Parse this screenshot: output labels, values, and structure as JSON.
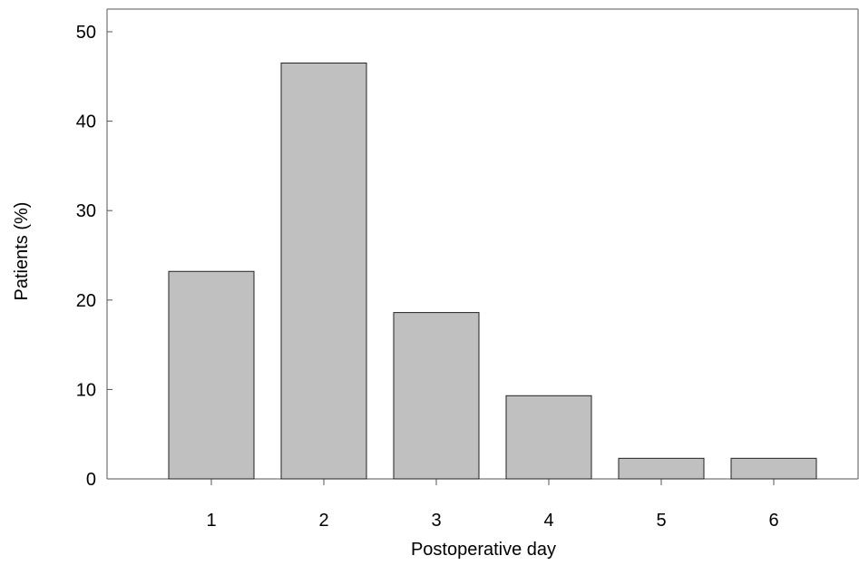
{
  "chart_data": {
    "type": "bar",
    "categories": [
      "1",
      "2",
      "3",
      "4",
      "5",
      "6"
    ],
    "values": [
      23.2,
      46.5,
      18.6,
      9.3,
      2.3,
      2.3
    ],
    "xlabel": "Postoperative day",
    "ylabel": "Patients (%)",
    "ylim": [
      0,
      50
    ],
    "yticks": [
      "0",
      "10",
      "20",
      "30",
      "40",
      "50"
    ],
    "grid": false,
    "colors": {
      "bar_fill": "#c0c0c0",
      "bar_stroke": "#222222"
    }
  }
}
